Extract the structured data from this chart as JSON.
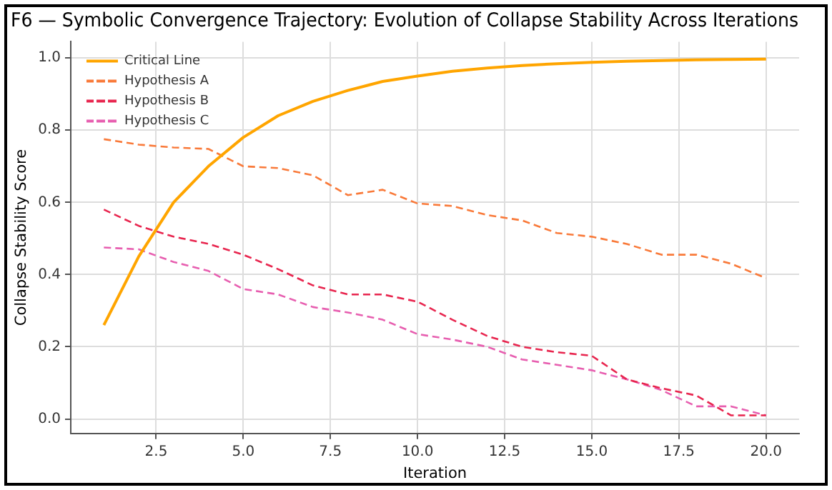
{
  "chart_data": {
    "type": "line",
    "title": "F6 — Symbolic Convergence Trajectory: Evolution of Collapse Stability Across Iterations",
    "xlabel": "Iteration",
    "ylabel": "Collapse Stability Score",
    "x": [
      1,
      2,
      3,
      4,
      5,
      6,
      7,
      8,
      9,
      10,
      11,
      12,
      13,
      14,
      15,
      16,
      17,
      18,
      19,
      20
    ],
    "series": [
      {
        "name": "Critical Line",
        "color": "#ffa500",
        "line_style": "solid",
        "values": [
          0.26,
          0.45,
          0.6,
          0.7,
          0.78,
          0.84,
          0.88,
          0.91,
          0.935,
          0.95,
          0.963,
          0.972,
          0.979,
          0.984,
          0.988,
          0.991,
          0.993,
          0.995,
          0.996,
          0.997
        ]
      },
      {
        "name": "Hypothesis A",
        "color": "#f97a3a",
        "line_style": "dashed",
        "values": [
          0.775,
          0.76,
          0.752,
          0.748,
          0.7,
          0.695,
          0.675,
          0.62,
          0.635,
          0.597,
          0.59,
          0.565,
          0.55,
          0.515,
          0.505,
          0.485,
          0.455,
          0.455,
          0.43,
          0.39
        ]
      },
      {
        "name": "Hypothesis B",
        "color": "#e8264f",
        "line_style": "dashed",
        "values": [
          0.58,
          0.535,
          0.505,
          0.485,
          0.455,
          0.415,
          0.37,
          0.345,
          0.345,
          0.325,
          0.275,
          0.23,
          0.2,
          0.185,
          0.175,
          0.11,
          0.085,
          0.065,
          0.01,
          0.01
        ]
      },
      {
        "name": "Hypothesis C",
        "color": "#e75fb0",
        "line_style": "dashed",
        "values": [
          0.475,
          0.47,
          0.435,
          0.41,
          0.36,
          0.345,
          0.31,
          0.295,
          0.275,
          0.235,
          0.22,
          0.2,
          0.165,
          0.15,
          0.135,
          0.11,
          0.08,
          0.035,
          0.035,
          0.01
        ]
      }
    ],
    "xlim": [
      0.05,
      20.95
    ],
    "ylim": [
      -0.04,
      1.045
    ],
    "xticks": [
      2.5,
      {
        "value": 5,
        "label": "5.0"
      },
      7.5,
      {
        "value": 10,
        "label": "10.0"
      },
      12.5,
      {
        "value": 15,
        "label": "15.0"
      },
      17.5,
      {
        "value": 20,
        "label": "20.0"
      }
    ],
    "yticks": [
      {
        "value": 0,
        "label": "0.0"
      },
      0.2,
      0.4,
      0.6,
      0.8,
      {
        "value": 1,
        "label": "1.0"
      }
    ],
    "grid": true,
    "legend": "top left",
    "marker": "none"
  }
}
